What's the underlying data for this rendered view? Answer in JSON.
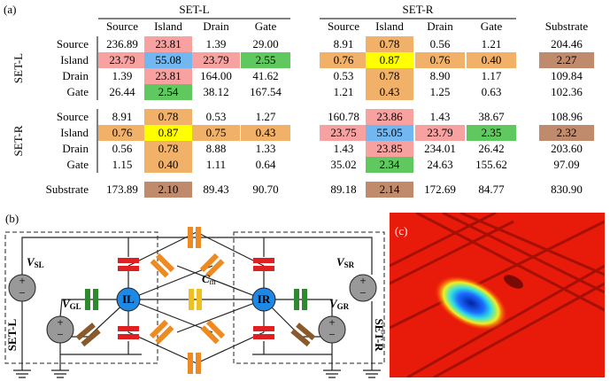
{
  "panel_labels": [
    "(a)",
    "(b)",
    "(c)"
  ],
  "table": {
    "column_groups": [
      {
        "label": "SET-L",
        "columns": [
          "Source",
          "Island",
          "Drain",
          "Gate"
        ]
      },
      {
        "label": "SET-R",
        "columns": [
          "Source",
          "Island",
          "Drain",
          "Gate"
        ]
      }
    ],
    "extra_column": "Substrate",
    "groups": [
      {
        "label": "SET-L",
        "rows": [
          {
            "label": "Source",
            "cells": [
              "236.89",
              "23.81",
              "1.39",
              "29.00",
              "8.91",
              "0.78",
              "0.56",
              "1.21",
              "204.46"
            ],
            "colors": [
              null,
              "#f7a1a1",
              null,
              null,
              null,
              "#f2b169",
              null,
              null,
              null
            ]
          },
          {
            "label": "Island",
            "cells": [
              "23.79",
              "55.08",
              "23.79",
              "2.55",
              "0.76",
              "0.87",
              "0.76",
              "0.40",
              "2.27"
            ],
            "colors": [
              "#f7a1a1",
              "#72b7ef",
              "#f7a1a1",
              "#5fc95f",
              "#f2b169",
              "#ffff00",
              "#f2b169",
              "#f2b169",
              "#c08b6c"
            ]
          },
          {
            "label": "Drain",
            "cells": [
              "1.39",
              "23.81",
              "164.00",
              "41.62",
              "0.53",
              "0.78",
              "8.90",
              "1.17",
              "109.84"
            ],
            "colors": [
              null,
              "#f7a1a1",
              null,
              null,
              null,
              "#f2b169",
              null,
              null,
              null
            ]
          },
          {
            "label": "Gate",
            "cells": [
              "26.44",
              "2.54",
              "38.12",
              "167.54",
              "1.21",
              "0.43",
              "1.25",
              "0.63",
              "102.36"
            ],
            "colors": [
              null,
              "#5fc95f",
              null,
              null,
              null,
              "#f2b169",
              null,
              null,
              null
            ]
          }
        ]
      },
      {
        "label": "SET-R",
        "rows": [
          {
            "label": "Source",
            "cells": [
              "8.91",
              "0.78",
              "0.53",
              "1.27",
              "160.78",
              "23.86",
              "1.43",
              "38.67",
              "108.96"
            ],
            "colors": [
              null,
              "#f2b169",
              null,
              null,
              null,
              "#f7a1a1",
              null,
              null,
              null
            ]
          },
          {
            "label": "Island",
            "cells": [
              "0.76",
              "0.87",
              "0.75",
              "0.43",
              "23.75",
              "55.05",
              "23.79",
              "2.35",
              "2.32"
            ],
            "colors": [
              "#f2b169",
              "#ffff00",
              "#f2b169",
              "#f2b169",
              "#f7a1a1",
              "#72b7ef",
              "#f7a1a1",
              "#5fc95f",
              "#c08b6c"
            ]
          },
          {
            "label": "Drain",
            "cells": [
              "0.56",
              "0.78",
              "8.88",
              "1.33",
              "1.43",
              "23.85",
              "234.01",
              "26.42",
              "203.60"
            ],
            "colors": [
              null,
              "#f2b169",
              null,
              null,
              null,
              "#f7a1a1",
              null,
              null,
              null
            ]
          },
          {
            "label": "Gate",
            "cells": [
              "1.15",
              "0.40",
              "1.11",
              "0.64",
              "35.02",
              "2.34",
              "24.63",
              "155.62",
              "97.09"
            ],
            "colors": [
              null,
              "#f2b169",
              null,
              null,
              null,
              "#5fc95f",
              null,
              null,
              null
            ]
          }
        ]
      }
    ],
    "footer": {
      "label": "Substrate",
      "cells": [
        "173.89",
        "2.10",
        "89.43",
        "90.70",
        "89.18",
        "2.14",
        "172.69",
        "84.77",
        "830.90"
      ],
      "colors": [
        null,
        "#c08b6c",
        null,
        null,
        null,
        "#c08b6c",
        null,
        null,
        null
      ]
    }
  },
  "diagram": {
    "islands": [
      "IL",
      "IR"
    ],
    "coupling": {
      "main": "C",
      "sub": "m"
    },
    "sources": [
      {
        "main": "V",
        "sub": "SL"
      },
      {
        "main": "V",
        "sub": "GL"
      },
      {
        "main": "V",
        "sub": "SR"
      },
      {
        "main": "V",
        "sub": "GR"
      }
    ],
    "boxes": [
      "SET-L",
      "SET-R"
    ]
  }
}
